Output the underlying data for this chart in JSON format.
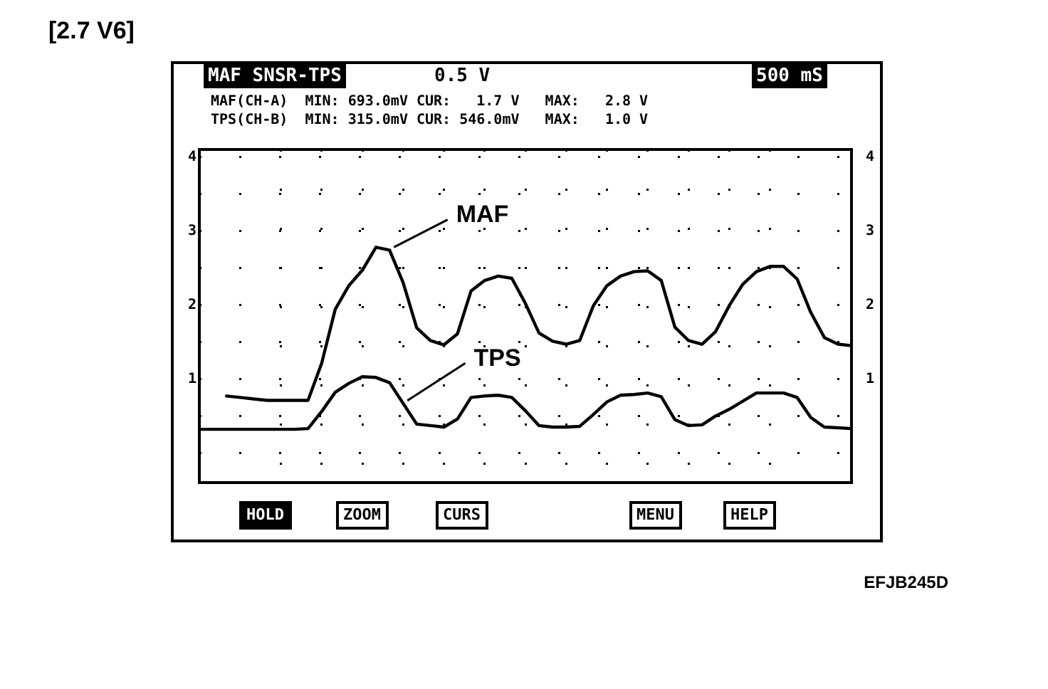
{
  "chart_data": {
    "type": "line",
    "title": "[2.7 V6]",
    "annotations": [
      "MAF SNSR-TPS",
      "0.5 V",
      "500 mS",
      "MAF(CH-A)  MIN: 693.0mV CUR:   1.7 V   MAX:   2.8 V",
      "TPS(CH-B)  MIN: 315.0mV CUR: 546.0mV   MAX:   1.0 V",
      "HOLD",
      "ZOOM",
      "CURS",
      "MENU",
      "HELP",
      "EFJB245D"
    ],
    "categories": [
      null,
      null,
      null,
      null,
      null,
      null,
      null,
      null,
      null,
      null,
      null,
      null,
      null,
      null,
      null,
      null,
      null,
      null,
      null,
      null,
      null,
      null,
      null,
      null,
      null,
      null,
      null,
      null,
      null,
      null,
      null,
      null,
      null,
      null,
      null,
      null,
      null,
      null,
      null,
      null,
      null,
      null,
      null,
      null,
      null,
      null,
      null,
      null,
      null
    ],
    "series": [
      {
        "name": "MAF",
        "color": "#000000",
        "values": [
          null,
          null,
          0.77,
          0.75,
          0.73,
          0.71,
          0.71,
          0.71,
          0.71,
          1.21,
          1.94,
          2.26,
          2.47,
          2.78,
          2.74,
          2.3,
          1.69,
          1.52,
          1.46,
          1.61,
          2.19,
          2.33,
          2.39,
          2.36,
          2.02,
          1.62,
          1.51,
          1.47,
          1.52,
          1.99,
          2.26,
          2.39,
          2.45,
          2.46,
          2.33,
          1.7,
          1.52,
          1.47,
          1.64,
          1.99,
          2.28,
          2.45,
          2.52,
          2.52,
          2.35,
          1.9,
          1.56,
          1.47,
          1.45
        ]
      },
      {
        "name": "TPS",
        "color": "#000000",
        "values": [
          0.32,
          0.32,
          0.32,
          0.32,
          0.32,
          0.32,
          0.32,
          0.32,
          0.33,
          0.56,
          0.82,
          0.94,
          1.03,
          1.02,
          0.95,
          0.67,
          0.39,
          0.37,
          0.35,
          0.46,
          0.75,
          0.77,
          0.78,
          0.75,
          0.57,
          0.37,
          0.35,
          0.35,
          0.36,
          0.52,
          0.69,
          0.78,
          0.79,
          0.81,
          0.76,
          0.45,
          0.37,
          0.38,
          0.5,
          0.59,
          0.7,
          0.81,
          0.81,
          0.81,
          0.75,
          0.48,
          0.35,
          0.34,
          0.33
        ]
      }
    ],
    "ylim": [
      -0.4,
      4.1
    ],
    "yticks": [
      {
        "value": 0,
        "label": null
      },
      {
        "value": 0.5,
        "label": null
      },
      1,
      {
        "value": 1.5,
        "label": null
      },
      2,
      {
        "value": 2.5,
        "label": null
      },
      3,
      {
        "value": 3.5,
        "label": null
      },
      4
    ],
    "y2lim": [
      -0.4,
      4.1
    ],
    "y2ticks": [
      1,
      2,
      3,
      4
    ],
    "tick_labels": "y",
    "grid": true,
    "legend": false,
    "marker": "none",
    "line_style": "solid"
  }
}
